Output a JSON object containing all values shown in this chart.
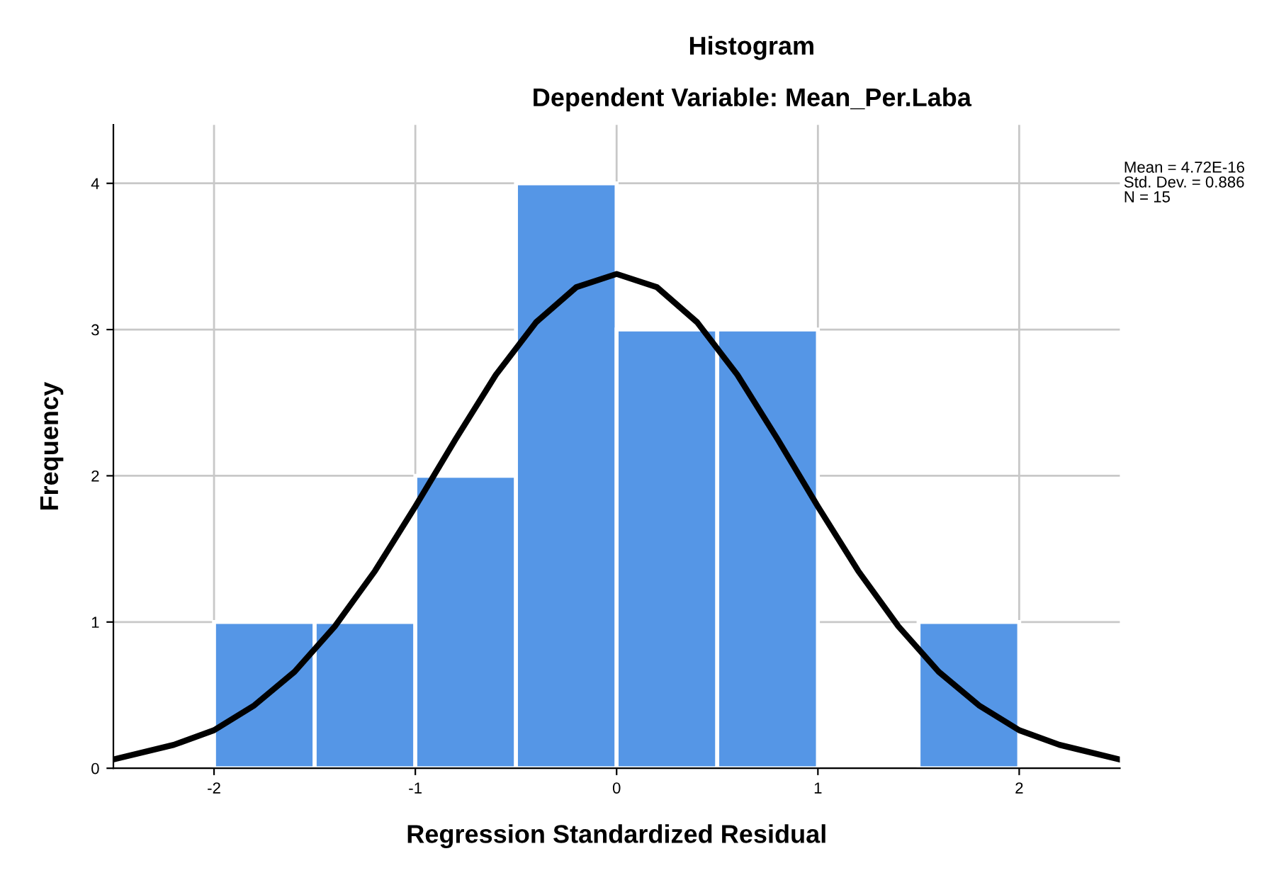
{
  "chart_data": {
    "type": "histogram",
    "title": "Histogram",
    "subtitle": "Dependent Variable: Mean_Per.Laba",
    "xlabel": "Regression Standardized Residual",
    "ylabel": "Frequency",
    "bins": [
      -2,
      -1.5,
      -1,
      -0.5,
      0,
      0.5,
      1,
      1.5,
      2
    ],
    "series": [
      {
        "type": "histogram",
        "color": "#5596e6",
        "values": [
          1,
          1,
          2,
          4,
          3,
          3,
          0,
          1
        ]
      },
      {
        "type": "line",
        "color": "#000000",
        "x": [
          -2.5,
          -2.2,
          -2.0,
          -1.8,
          -1.6,
          -1.4,
          -1.2,
          -1.0,
          -0.8,
          -0.6,
          -0.4,
          -0.2,
          0,
          0.2,
          0.4,
          0.6,
          0.8,
          1.0,
          1.2,
          1.4,
          1.6,
          1.8,
          2.0,
          2.2,
          2.5
        ],
        "values": [
          0.06,
          0.16,
          0.26,
          0.43,
          0.66,
          0.97,
          1.35,
          1.79,
          2.25,
          2.69,
          3.05,
          3.29,
          3.38,
          3.29,
          3.05,
          2.69,
          2.25,
          1.79,
          1.35,
          0.97,
          0.66,
          0.43,
          0.26,
          0.16,
          0.06
        ]
      }
    ],
    "annotations": [
      "Mean = 4.72E-16",
      "Std. Dev. = 0.886",
      "N = 15"
    ],
    "xlim": [
      -2.5,
      2.5
    ],
    "ylim": [
      0,
      4.4
    ],
    "xticks": [
      -2,
      -1,
      0,
      1,
      2
    ],
    "yticks": [
      0,
      1,
      2,
      3,
      4
    ],
    "grid": true,
    "legend": false
  }
}
